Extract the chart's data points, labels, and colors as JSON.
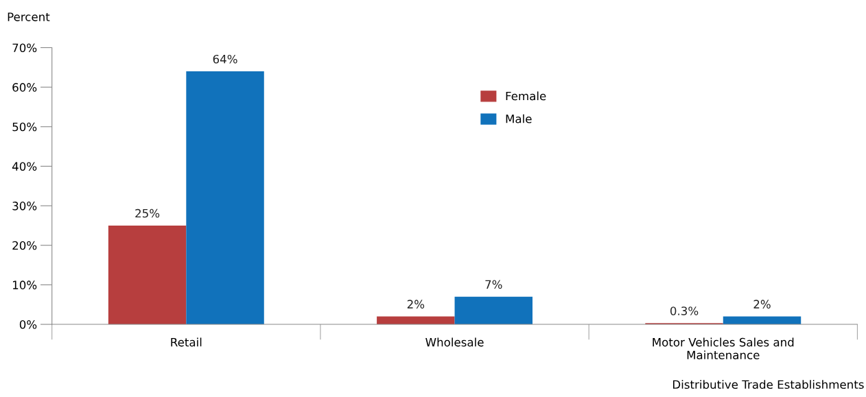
{
  "chart_data": {
    "type": "bar",
    "ylabel": "Percent",
    "xlabel": "Distributive Trade Establishments",
    "categories": [
      "Retail",
      "Wholesale",
      "Motor Vehicles Sales and\nMaintenance"
    ],
    "series": [
      {
        "name": "Female",
        "color": "#b73e3e",
        "values": [
          25,
          2,
          0.3
        ],
        "value_labels": [
          "25%",
          "2%",
          "0.3%"
        ]
      },
      {
        "name": "Male",
        "color": "#1172bb",
        "values": [
          64,
          7,
          2
        ],
        "value_labels": [
          "64%",
          "7%",
          "2%"
        ]
      }
    ],
    "ylim": [
      0,
      70
    ],
    "yticks": [
      {
        "value": 0,
        "label": "0%"
      },
      {
        "value": 10,
        "label": "10%"
      },
      {
        "value": 20,
        "label": "20%"
      },
      {
        "value": 30,
        "label": "30%"
      },
      {
        "value": 40,
        "label": "40%"
      },
      {
        "value": 50,
        "label": "50%"
      },
      {
        "value": 60,
        "label": "60%"
      },
      {
        "value": 70,
        "label": "70%"
      }
    ],
    "grid": false,
    "legend": "top"
  }
}
